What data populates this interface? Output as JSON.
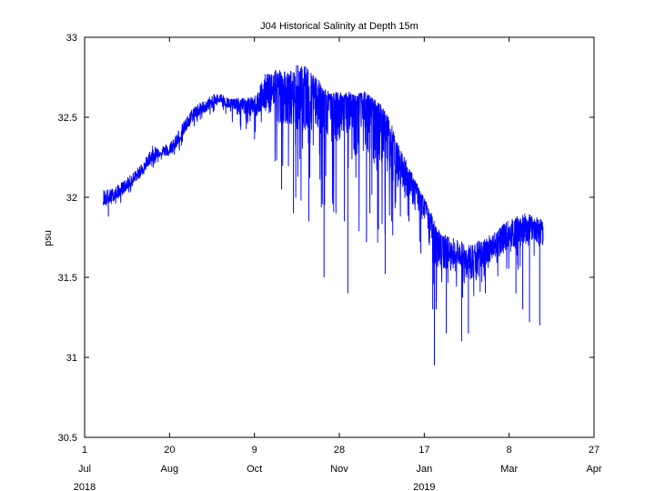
{
  "chart_data": {
    "type": "line",
    "title": "J04 Historical Salinity at Depth 15m",
    "xlabel": "",
    "ylabel": "psu",
    "ylim": [
      30.5,
      33
    ],
    "yticks": [
      "30.5",
      "31",
      "31.5",
      "32",
      "32.5",
      "33"
    ],
    "x_range": [
      "2018-07-01",
      "2019-04-27"
    ],
    "x_ticks": [
      {
        "date": "2018-07-01",
        "day": "1",
        "month": "Jul",
        "year": "2018"
      },
      {
        "date": "2018-08-20",
        "day": "20",
        "month": "Aug",
        "year": ""
      },
      {
        "date": "2018-10-09",
        "day": "9",
        "month": "Oct",
        "year": ""
      },
      {
        "date": "2018-11-28",
        "day": "28",
        "month": "Nov",
        "year": ""
      },
      {
        "date": "2019-01-17",
        "day": "17",
        "month": "Jan",
        "year": "2019"
      },
      {
        "date": "2019-03-08",
        "day": "8",
        "month": "Mar",
        "year": ""
      },
      {
        "date": "2019-04-27",
        "day": "27",
        "month": "Apr",
        "year": ""
      }
    ],
    "grid": false,
    "legend": "none",
    "series_color": "#0000ff",
    "series": [
      {
        "dates": [
          "2018-07-12",
          "2018-07-16",
          "2018-07-21",
          "2018-07-26",
          "2018-07-31",
          "2018-08-05",
          "2018-08-10",
          "2018-08-15",
          "2018-08-20",
          "2018-08-25",
          "2018-08-30",
          "2018-09-04",
          "2018-09-09",
          "2018-09-14",
          "2018-09-19",
          "2018-09-24",
          "2018-09-29",
          "2018-10-04",
          "2018-10-09",
          "2018-10-14",
          "2018-10-19",
          "2018-10-24",
          "2018-10-29",
          "2018-11-03",
          "2018-11-08",
          "2018-11-13",
          "2018-11-18",
          "2018-11-23",
          "2018-11-28",
          "2018-12-03",
          "2018-12-08",
          "2018-12-13",
          "2018-12-18",
          "2018-12-23",
          "2018-12-28",
          "2019-01-02",
          "2019-01-07",
          "2019-01-12",
          "2019-01-17",
          "2019-01-22",
          "2019-01-27",
          "2019-02-01",
          "2019-02-06",
          "2019-02-11",
          "2019-02-16",
          "2019-02-21",
          "2019-02-26",
          "2019-03-03",
          "2019-03-08",
          "2019-03-13",
          "2019-03-18",
          "2019-03-23",
          "2019-03-28"
        ],
        "mean": [
          31.98,
          31.99,
          32.02,
          32.07,
          32.12,
          32.18,
          32.25,
          32.28,
          32.28,
          32.35,
          32.45,
          32.52,
          32.55,
          32.58,
          32.62,
          32.58,
          32.57,
          32.58,
          32.57,
          32.6,
          32.68,
          32.68,
          32.66,
          32.62,
          32.65,
          32.68,
          32.62,
          32.58,
          32.6,
          32.6,
          32.58,
          32.6,
          32.55,
          32.5,
          32.4,
          32.25,
          32.15,
          32.05,
          31.95,
          31.82,
          31.72,
          31.65,
          31.65,
          31.58,
          31.6,
          31.65,
          31.68,
          31.72,
          31.76,
          31.8,
          31.82,
          31.82,
          31.8
        ],
        "max": [
          32.05,
          32.05,
          32.08,
          32.12,
          32.17,
          32.23,
          32.32,
          32.32,
          32.34,
          32.42,
          32.5,
          32.58,
          32.6,
          32.64,
          32.65,
          32.62,
          32.62,
          32.62,
          32.63,
          32.75,
          32.82,
          32.8,
          32.78,
          32.83,
          32.82,
          32.78,
          32.7,
          32.65,
          32.66,
          32.66,
          32.65,
          32.66,
          32.62,
          32.58,
          32.48,
          32.32,
          32.22,
          32.1,
          32.0,
          31.88,
          31.78,
          31.75,
          31.74,
          31.7,
          31.72,
          31.74,
          31.78,
          31.82,
          31.86,
          31.88,
          31.9,
          31.88,
          31.86
        ],
        "min": [
          31.9,
          31.92,
          31.95,
          32.0,
          32.05,
          32.12,
          32.18,
          32.22,
          32.22,
          32.28,
          32.35,
          32.45,
          32.48,
          32.52,
          32.55,
          32.48,
          32.42,
          32.4,
          32.35,
          32.45,
          32.2,
          32.05,
          32.1,
          31.95,
          32.0,
          32.05,
          31.9,
          31.85,
          31.9,
          32.05,
          31.6,
          31.75,
          31.55,
          31.7,
          31.6,
          31.7,
          31.65,
          31.75,
          31.65,
          31.15,
          31.2,
          31.35,
          31.45,
          31.3,
          31.2,
          31.4,
          31.5,
          31.48,
          31.55,
          31.5,
          31.45,
          31.55,
          31.5
        ]
      }
    ],
    "spikes": [
      {
        "date": "2018-07-15",
        "value": 31.88
      },
      {
        "date": "2018-10-25",
        "value": 32.05
      },
      {
        "date": "2018-11-01",
        "value": 31.9
      },
      {
        "date": "2018-11-10",
        "value": 31.85
      },
      {
        "date": "2018-11-19",
        "value": 31.5
      },
      {
        "date": "2018-11-26",
        "value": 31.9
      },
      {
        "date": "2018-12-01",
        "value": 31.85
      },
      {
        "date": "2018-12-03",
        "value": 31.4
      },
      {
        "date": "2018-12-14",
        "value": 31.72
      },
      {
        "date": "2018-12-16",
        "value": 31.9
      },
      {
        "date": "2018-12-21",
        "value": 31.8
      },
      {
        "date": "2018-12-25",
        "value": 31.52
      },
      {
        "date": "2019-01-08",
        "value": 31.85
      },
      {
        "date": "2019-01-15",
        "value": 31.65
      },
      {
        "date": "2019-01-22",
        "value": 31.3
      },
      {
        "date": "2019-01-23",
        "value": 30.95
      },
      {
        "date": "2019-01-24",
        "value": 31.3
      },
      {
        "date": "2019-01-30",
        "value": 31.15
      },
      {
        "date": "2019-02-08",
        "value": 31.1
      },
      {
        "date": "2019-02-12",
        "value": 31.15
      },
      {
        "date": "2019-02-22",
        "value": 31.4
      },
      {
        "date": "2019-03-12",
        "value": 31.4
      },
      {
        "date": "2019-03-16",
        "value": 31.3
      },
      {
        "date": "2019-03-20",
        "value": 31.22
      },
      {
        "date": "2019-03-26",
        "value": 31.2
      }
    ]
  }
}
